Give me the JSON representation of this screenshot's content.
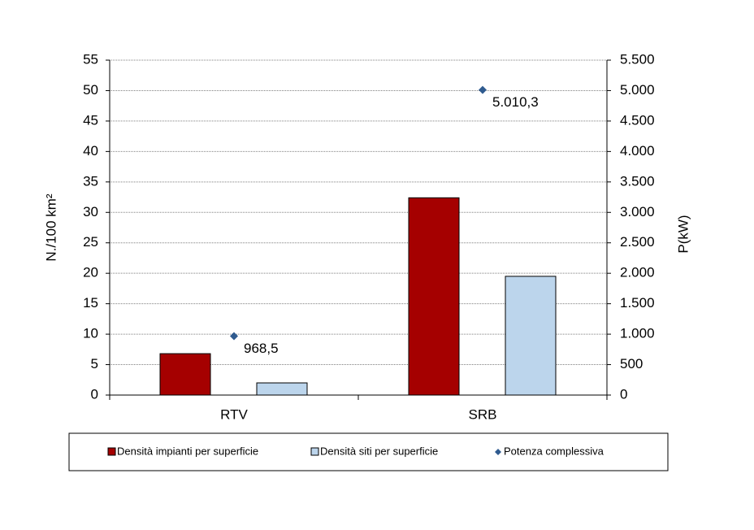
{
  "chart_data": {
    "type": "bar",
    "categories": [
      "RTV",
      "SRB"
    ],
    "ylabel": "N./100 km²",
    "y2label": "P(kW)",
    "ylim": [
      0,
      55
    ],
    "yticks": [
      0,
      5,
      10,
      15,
      20,
      25,
      30,
      35,
      40,
      45,
      50,
      55
    ],
    "y2lim": [
      0,
      5500
    ],
    "y2ticks": [
      0,
      500,
      {
        "value": 1000,
        "label": "1.000"
      },
      {
        "value": 1500,
        "label": "1.500"
      },
      {
        "value": 2000,
        "label": "2.000"
      },
      {
        "value": 2500,
        "label": "2.500"
      },
      {
        "value": 3000,
        "label": "3.000"
      },
      {
        "value": 3500,
        "label": "3.500"
      },
      {
        "value": 4000,
        "label": "4.000"
      },
      {
        "value": 4500,
        "label": "4.500"
      },
      {
        "value": 5000,
        "label": "5.000"
      },
      {
        "value": 5500,
        "label": "5.500"
      }
    ],
    "grid": true,
    "legend": "bottom",
    "series": [
      {
        "name": "Densità impianti per superficie",
        "color": "#a50000",
        "values": [
          6.8,
          32.4
        ]
      },
      {
        "name": "Densità siti per superficie",
        "color": "#bcd5ec",
        "values": [
          2.0,
          19.5
        ]
      },
      {
        "name": "Potenza complessiva",
        "color": "#2f5b8f",
        "type": "scatter",
        "axis": "y2",
        "values": [
          968.5,
          5010.3
        ],
        "value_labels": [
          "968,5",
          "5.010,3"
        ]
      }
    ]
  }
}
